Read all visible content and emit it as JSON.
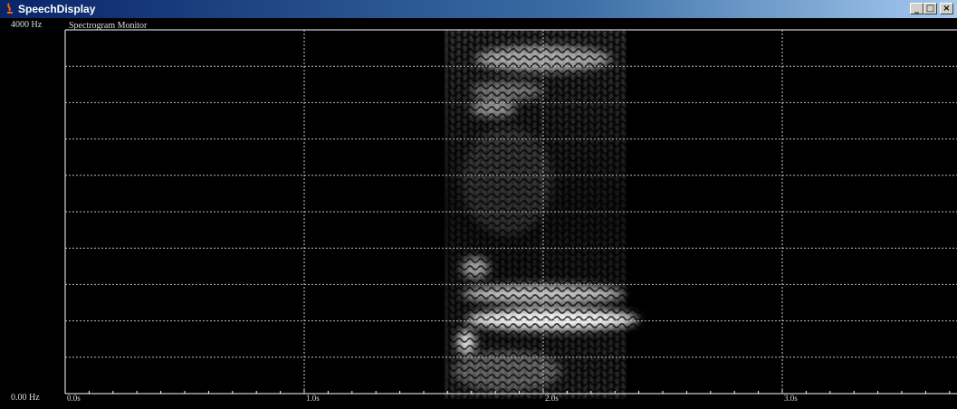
{
  "window": {
    "title": "SpeechDisplay"
  },
  "frequency_axis": {
    "top_label": "4000 Hz",
    "bottom_label": "0.00 Hz"
  },
  "panel": {
    "title": "Spectrogram Monitor"
  },
  "time_axis": {
    "labels": [
      "0.0s",
      "1.0s",
      "2.0s",
      "3.0s"
    ]
  }
}
